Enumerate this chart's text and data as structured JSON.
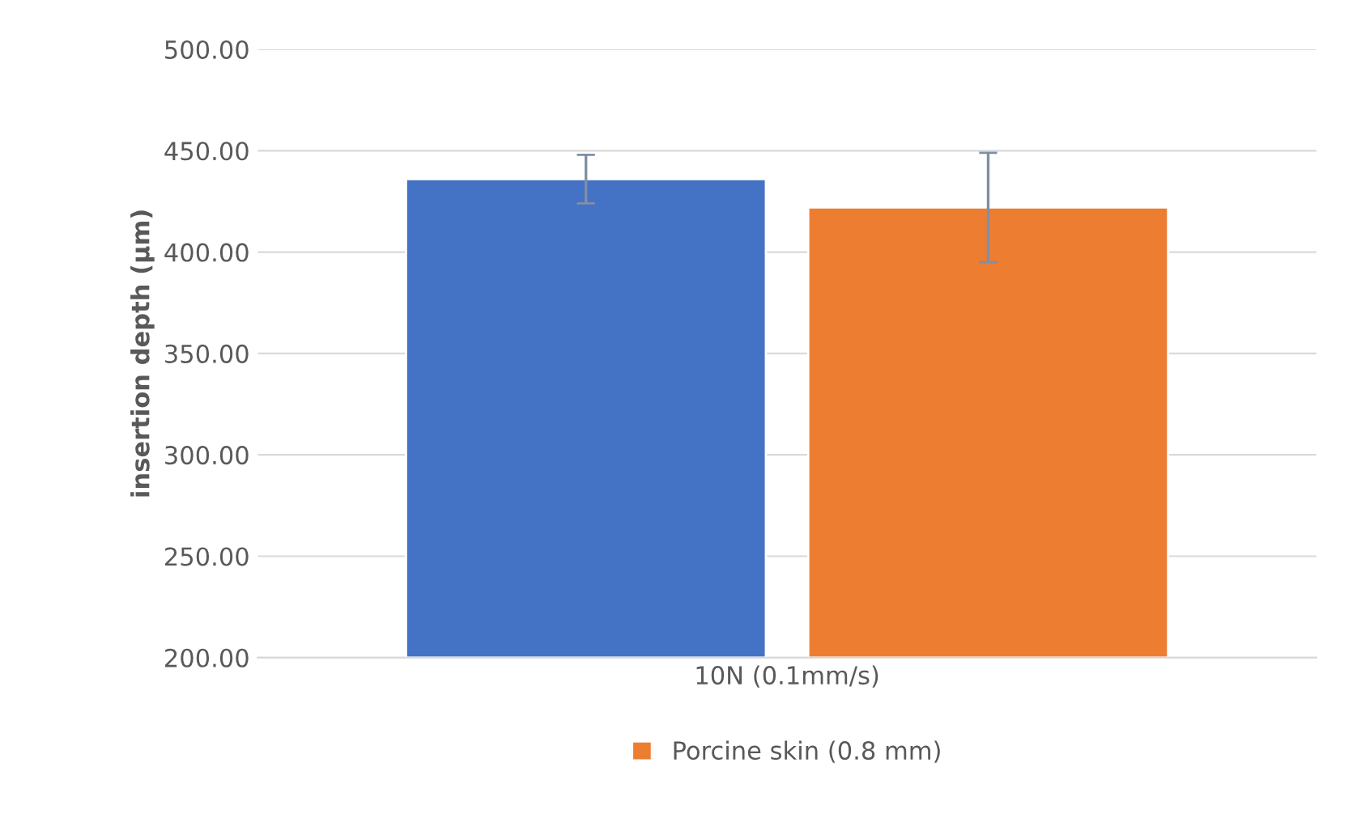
{
  "chart_data": {
    "type": "bar",
    "ylabel": "insertion depth (µm)",
    "categories": [
      "10N (0.1mm/s)"
    ],
    "series": [
      {
        "color": "#4472c4",
        "values": [
          436
        ],
        "errors": [
          12
        ]
      },
      {
        "name": "Porcine skin (0.8 mm)",
        "color": "#ed7d31",
        "values": [
          422
        ],
        "errors": [
          27
        ]
      }
    ],
    "ylim": [
      200,
      500
    ],
    "yticks": [
      {
        "value": 200,
        "label": "200.00"
      },
      {
        "value": 250,
        "label": "250.00"
      },
      {
        "value": 300,
        "label": "300.00"
      },
      {
        "value": 350,
        "label": "350.00"
      },
      {
        "value": 400,
        "label": "400.00"
      },
      {
        "value": 450,
        "label": "450.00"
      },
      {
        "value": 500,
        "label": "500.00"
      }
    ],
    "grid": "y",
    "legend": "bottom"
  }
}
